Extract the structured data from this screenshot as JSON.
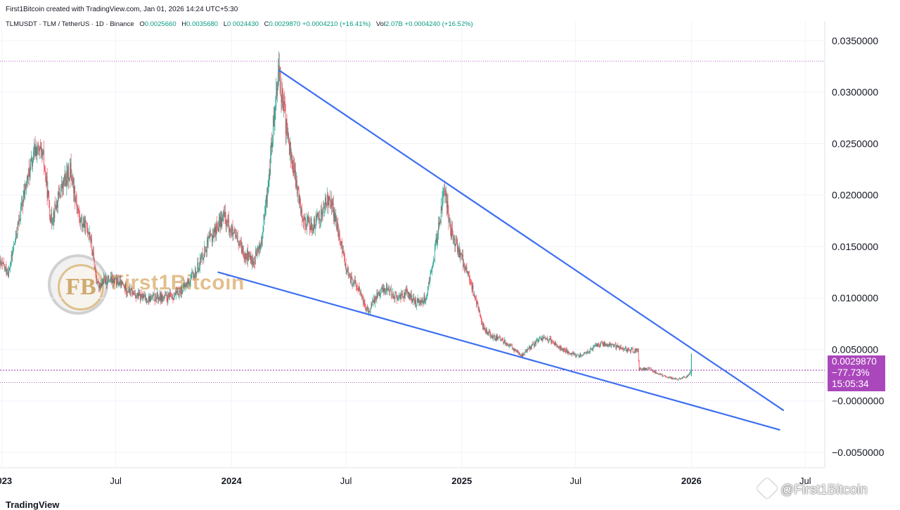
{
  "header": {
    "credit": "First1Bitcoin created with TradingView.com, Jan 01, 2026 14:24 UTC+5:30",
    "symbol": "TLMUSDT · TLM / TetherUS · 1D · Binance",
    "open_label": "O",
    "open": "0.0025660",
    "high_label": "H",
    "high": "0.0035680",
    "low_label": "L",
    "low": "0.0024430",
    "close_label": "C",
    "close": "0.0029870",
    "change": "+0.0004210 (+16.41%)",
    "vol_label": "Vol",
    "vol": "2.07B",
    "vol_change": "+0.0004240 (+16.52%)"
  },
  "badge": {
    "price": "0.0029870",
    "change": "−77.73%",
    "countdown": "15:05:34",
    "color": "#ab47bc"
  },
  "watermark": {
    "monogram": "FB",
    "text": "First1Bitcoin"
  },
  "footer": {
    "brand": "@First1Bitcoin",
    "tv": "TradingView"
  },
  "colors": {
    "up": "#089981",
    "down": "#f23645",
    "trendline": "#3d6ff2",
    "price_line": "#9c27b0"
  },
  "chart_data": {
    "type": "candlestick",
    "ylim": [
      -0.0065,
      0.0369
    ],
    "x_range": [
      "2022-12-29",
      "2026-08-01"
    ],
    "y_ticks": [
      "0.0350000",
      "0.0300000",
      "0.0250000",
      "0.0200000",
      "0.0150000",
      "0.0100000",
      "0.0050000",
      "−0.0000000",
      "−0.0050000"
    ],
    "y_tick_values": [
      0.035,
      0.03,
      0.025,
      0.02,
      0.015,
      0.01,
      0.005,
      0,
      -0.005
    ],
    "x_ticks": [
      {
        "date": "2023-01-01",
        "label": "2023",
        "bold": true
      },
      {
        "date": "2023-07-01",
        "label": "Jul",
        "bold": false
      },
      {
        "date": "2024-01-01",
        "label": "2024",
        "bold": true
      },
      {
        "date": "2024-07-01",
        "label": "Jul",
        "bold": false
      },
      {
        "date": "2025-01-01",
        "label": "2025",
        "bold": true
      },
      {
        "date": "2025-07-01",
        "label": "Jul",
        "bold": false
      },
      {
        "date": "2026-01-01",
        "label": "2026",
        "bold": true
      },
      {
        "date": "2026-07-01",
        "label": "Jul",
        "bold": false
      }
    ],
    "price_path": [
      [
        "2022-12-29",
        0.0133
      ],
      [
        "2023-01-12",
        0.0125
      ],
      [
        "2023-01-28",
        0.0175
      ],
      [
        "2023-02-10",
        0.0215
      ],
      [
        "2023-02-24",
        0.0245
      ],
      [
        "2023-03-08",
        0.0235
      ],
      [
        "2023-03-20",
        0.0175
      ],
      [
        "2023-04-05",
        0.0205
      ],
      [
        "2023-04-20",
        0.0225
      ],
      [
        "2023-05-05",
        0.0175
      ],
      [
        "2023-05-20",
        0.0165
      ],
      [
        "2023-06-02",
        0.0112
      ],
      [
        "2023-06-18",
        0.0118
      ],
      [
        "2023-07-05",
        0.0115
      ],
      [
        "2023-07-20",
        0.0108
      ],
      [
        "2023-08-05",
        0.0102
      ],
      [
        "2023-08-20",
        0.0099
      ],
      [
        "2023-09-05",
        0.0101
      ],
      [
        "2023-09-20",
        0.01
      ],
      [
        "2023-10-05",
        0.0103
      ],
      [
        "2023-10-20",
        0.0112
      ],
      [
        "2023-11-05",
        0.0125
      ],
      [
        "2023-11-20",
        0.0148
      ],
      [
        "2023-12-05",
        0.0165
      ],
      [
        "2023-12-20",
        0.018
      ],
      [
        "2024-01-05",
        0.016
      ],
      [
        "2024-01-20",
        0.0145
      ],
      [
        "2024-02-05",
        0.0135
      ],
      [
        "2024-02-18",
        0.0155
      ],
      [
        "2024-03-01",
        0.022
      ],
      [
        "2024-03-10",
        0.029
      ],
      [
        "2024-03-16",
        0.0325
      ],
      [
        "2024-03-22",
        0.029
      ],
      [
        "2024-04-01",
        0.025
      ],
      [
        "2024-04-13",
        0.021
      ],
      [
        "2024-04-25",
        0.0175
      ],
      [
        "2024-05-10",
        0.017
      ],
      [
        "2024-05-25",
        0.0185
      ],
      [
        "2024-06-05",
        0.02
      ],
      [
        "2024-06-20",
        0.016
      ],
      [
        "2024-07-05",
        0.012
      ],
      [
        "2024-07-20",
        0.011
      ],
      [
        "2024-08-05",
        0.0085
      ],
      [
        "2024-08-20",
        0.0105
      ],
      [
        "2024-09-05",
        0.011
      ],
      [
        "2024-09-20",
        0.01
      ],
      [
        "2024-10-05",
        0.0105
      ],
      [
        "2024-10-20",
        0.0095
      ],
      [
        "2024-11-05",
        0.01
      ],
      [
        "2024-11-15",
        0.013
      ],
      [
        "2024-11-28",
        0.018
      ],
      [
        "2024-12-05",
        0.0205
      ],
      [
        "2024-12-15",
        0.0165
      ],
      [
        "2024-12-28",
        0.0145
      ],
      [
        "2025-01-10",
        0.0125
      ],
      [
        "2025-01-25",
        0.0095
      ],
      [
        "2025-02-05",
        0.007
      ],
      [
        "2025-02-20",
        0.0062
      ],
      [
        "2025-03-10",
        0.0058
      ],
      [
        "2025-03-25",
        0.005
      ],
      [
        "2025-04-07",
        0.0044
      ],
      [
        "2025-04-20",
        0.0052
      ],
      [
        "2025-05-10",
        0.0062
      ],
      [
        "2025-05-25",
        0.0058
      ],
      [
        "2025-06-10",
        0.005
      ],
      [
        "2025-06-25",
        0.0046
      ],
      [
        "2025-07-10",
        0.0044
      ],
      [
        "2025-07-25",
        0.005
      ],
      [
        "2025-08-10",
        0.0056
      ],
      [
        "2025-08-25",
        0.0054
      ],
      [
        "2025-09-10",
        0.0052
      ],
      [
        "2025-09-25",
        0.0049
      ],
      [
        "2025-10-08",
        0.0049
      ],
      [
        "2025-10-10",
        0.003
      ],
      [
        "2025-10-25",
        0.0032
      ],
      [
        "2025-11-10",
        0.0026
      ],
      [
        "2025-11-25",
        0.0023
      ],
      [
        "2025-12-10",
        0.0021
      ],
      [
        "2025-12-25",
        0.0024
      ],
      [
        "2026-01-01",
        0.0029
      ]
    ],
    "trendlines": [
      {
        "name": "upper",
        "start": [
          "2024-03-17",
          0.0321
        ],
        "end": [
          "2026-05-27",
          -0.0009
        ]
      },
      {
        "name": "lower",
        "start": [
          "2023-12-11",
          0.0125
        ],
        "end": [
          "2026-05-21",
          -0.0028
        ]
      }
    ],
    "current_price": 0.002987,
    "reference_levels": [
      0.033,
      0.0018
    ]
  }
}
